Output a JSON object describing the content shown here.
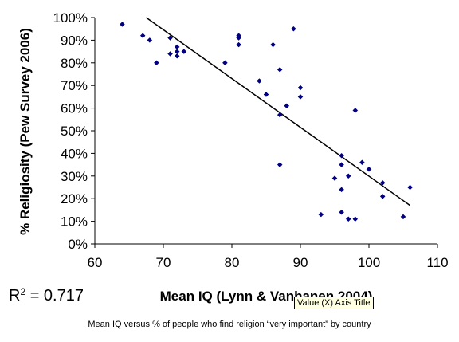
{
  "chart_data": {
    "type": "scatter",
    "xlabel": "Mean IQ (Lynn & Vanhanen 2004)",
    "ylabel": "% Religiosity (Pew Survey 2006)",
    "xlim": [
      60,
      110
    ],
    "ylim": [
      0,
      100
    ],
    "x_ticks": [
      "60",
      "70",
      "80",
      "90",
      "100",
      "110"
    ],
    "y_ticks": [
      "0%",
      "10%",
      "20%",
      "30%",
      "40%",
      "50%",
      "60%",
      "70%",
      "80%",
      "90%",
      "100%"
    ],
    "grid": false,
    "marker_color": "#000080",
    "trendline": {
      "x1": 67.5,
      "y1": 100,
      "x2": 106,
      "y2": 17
    },
    "points": [
      {
        "x": 64,
        "y": 97
      },
      {
        "x": 67,
        "y": 92
      },
      {
        "x": 68,
        "y": 90
      },
      {
        "x": 69,
        "y": 80
      },
      {
        "x": 71,
        "y": 91
      },
      {
        "x": 71,
        "y": 84
      },
      {
        "x": 72,
        "y": 87
      },
      {
        "x": 72,
        "y": 85
      },
      {
        "x": 72,
        "y": 83
      },
      {
        "x": 73,
        "y": 85
      },
      {
        "x": 79,
        "y": 80
      },
      {
        "x": 81,
        "y": 92
      },
      {
        "x": 81,
        "y": 91
      },
      {
        "x": 81,
        "y": 88
      },
      {
        "x": 84,
        "y": 72
      },
      {
        "x": 85,
        "y": 66
      },
      {
        "x": 86,
        "y": 88
      },
      {
        "x": 87,
        "y": 77
      },
      {
        "x": 87,
        "y": 57
      },
      {
        "x": 87,
        "y": 35
      },
      {
        "x": 88,
        "y": 61
      },
      {
        "x": 89,
        "y": 95
      },
      {
        "x": 90,
        "y": 69
      },
      {
        "x": 90,
        "y": 65
      },
      {
        "x": 93,
        "y": 13
      },
      {
        "x": 95,
        "y": 29
      },
      {
        "x": 96,
        "y": 39
      },
      {
        "x": 96,
        "y": 35
      },
      {
        "x": 96,
        "y": 24
      },
      {
        "x": 96,
        "y": 14
      },
      {
        "x": 97,
        "y": 30
      },
      {
        "x": 97,
        "y": 11
      },
      {
        "x": 98,
        "y": 59
      },
      {
        "x": 98,
        "y": 11
      },
      {
        "x": 99,
        "y": 36
      },
      {
        "x": 100,
        "y": 33
      },
      {
        "x": 102,
        "y": 27
      },
      {
        "x": 102,
        "y": 21
      },
      {
        "x": 105,
        "y": 12
      },
      {
        "x": 106,
        "y": 25
      }
    ]
  },
  "r2": {
    "label": "R",
    "exponent": "2",
    "value": " = 0.717"
  },
  "tooltip": "Value (X) Axis Title",
  "caption": "Mean IQ versus % of people who find religion “very important” by country"
}
